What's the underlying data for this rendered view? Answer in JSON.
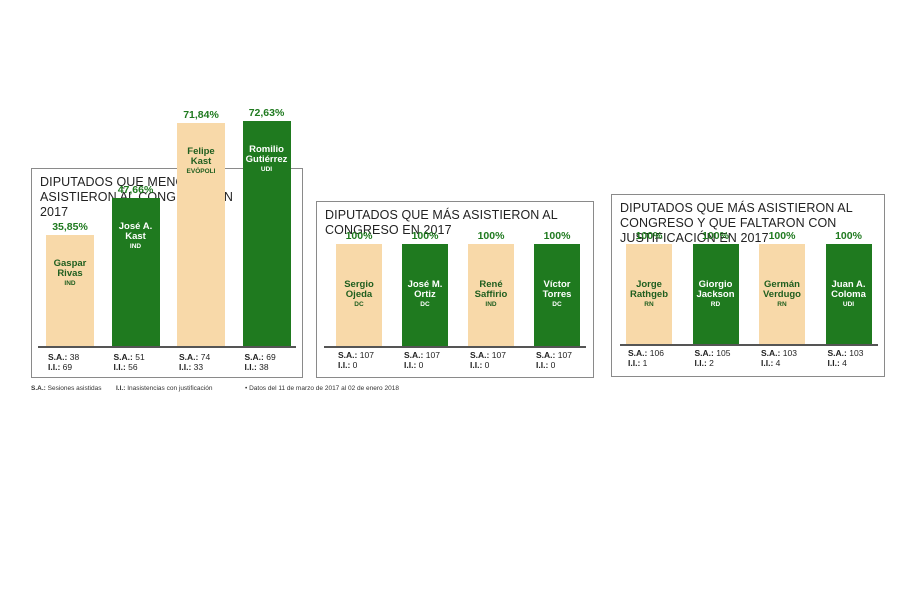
{
  "chart_data": [
    {
      "type": "bar",
      "title": "DIPUTADOS QUE MENOS ASISTIERON AL CONGRESO EN 2017",
      "categories": [
        "Gaspar Rivas",
        "José A. Kast",
        "Felipe Kast",
        "Romilio Gutiérrez"
      ],
      "name_lines": [
        [
          "Gaspar",
          "Rivas"
        ],
        [
          "José A.",
          "Kast"
        ],
        [
          "Felipe",
          "Kast"
        ],
        [
          "Romilio",
          "Gutiérrez"
        ]
      ],
      "parties": [
        "IND",
        "IND",
        "EVÓPOLI",
        "UDI"
      ],
      "values": [
        35.85,
        47.66,
        71.84,
        72.63
      ],
      "value_labels": [
        "35,85%",
        "47,66%",
        "71,84%",
        "72,63%"
      ],
      "bar_colors": [
        "light",
        "dark",
        "light",
        "dark"
      ],
      "sa": [
        "38",
        "51",
        "74",
        "69"
      ],
      "ij": [
        "69",
        "56",
        "33",
        "38"
      ],
      "ylim": [
        0,
        100
      ]
    },
    {
      "type": "bar",
      "title": "DIPUTADOS QUE MÁS ASISTIERON AL CONGRESO EN 2017",
      "categories": [
        "Sergio Ojeda",
        "José M. Ortiz",
        "René Saffirio",
        "Víctor Torres"
      ],
      "name_lines": [
        [
          "Sergio",
          "Ojeda"
        ],
        [
          "José M.",
          "Ortiz"
        ],
        [
          "René",
          "Saffirio"
        ],
        [
          "Víctor",
          "Torres"
        ]
      ],
      "parties": [
        "DC",
        "DC",
        "IND",
        "DC"
      ],
      "values": [
        100,
        100,
        100,
        100
      ],
      "value_labels": [
        "100%",
        "100%",
        "100%",
        "100%"
      ],
      "bar_colors": [
        "light",
        "dark",
        "light",
        "dark"
      ],
      "sa": [
        "107",
        "107",
        "107",
        "107"
      ],
      "ij": [
        "0",
        "0",
        "0",
        "0"
      ],
      "ylim": [
        0,
        100
      ]
    },
    {
      "type": "bar",
      "title": "DIPUTADOS QUE MÁS ASISTIERON AL CONGRESO Y QUE FALTARON CON JUSTIFICACIÓN EN 2017",
      "categories": [
        "Jorge Rathgeb",
        "Giorgio Jackson",
        "Germán Verdugo",
        "Juan A. Coloma"
      ],
      "name_lines": [
        [
          "Jorge",
          "Rathgeb"
        ],
        [
          "Giorgio",
          "Jackson"
        ],
        [
          "Germán",
          "Verdugo"
        ],
        [
          "Juan A.",
          "Coloma"
        ]
      ],
      "parties": [
        "RN",
        "RD",
        "RN",
        "UDI"
      ],
      "values": [
        100,
        100,
        100,
        100
      ],
      "value_labels": [
        "100%",
        "100%",
        "100%",
        "100%"
      ],
      "bar_colors": [
        "light",
        "dark",
        "light",
        "dark"
      ],
      "sa": [
        "106",
        "105",
        "103",
        "103"
      ],
      "ij": [
        "1",
        "2",
        "4",
        "4"
      ],
      "ylim": [
        0,
        100
      ]
    }
  ],
  "labels": {
    "sa": "S.A.:",
    "ij": "I.I.:"
  },
  "footer": {
    "sa_abbr": "S.A.:",
    "sa_text": "Sesiones asistidas",
    "ij_abbr": "I.I.:",
    "ij_text": "Inasistencias con justificación",
    "note": "• Datos del 11 de marzo de 2017 al 02 de enero 2018"
  },
  "colors": {
    "light": "#f8d9a9",
    "dark": "#1f7a1f",
    "pct_text": "#1f7a1f"
  }
}
